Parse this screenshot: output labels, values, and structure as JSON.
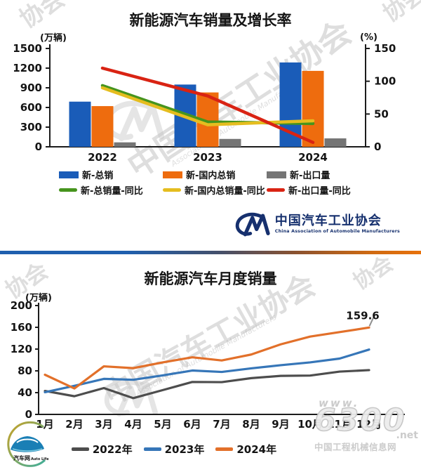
{
  "watermarks": {
    "assoc_cn": "中国汽车工业协会",
    "assoc_script": "Association of Automobile Manufacturers",
    "corner_fragment": "协会",
    "site_www": "www.",
    "site_number": "6300",
    "site_net": ".net",
    "site_name": "中国工程机械信息网"
  },
  "logo": {
    "name_cn": "中国汽车工业协会",
    "name_en": "China Association of Automobile Manufacturers"
  },
  "footer_logo": {
    "text_cn": "汽车网",
    "text_en": "Auto Life"
  },
  "chart_data": [
    {
      "type": "bar",
      "subtype": "bar+line combo, dual axis",
      "title": "新能源汽车销量及增长率",
      "left_axis_unit": "(万辆)",
      "right_axis_unit": "(%)",
      "categories": [
        "2022",
        "2023",
        "2024"
      ],
      "left_axis_ticks": [
        1500,
        1200,
        900,
        600,
        300,
        0
      ],
      "right_axis_ticks": [
        150,
        100,
        50,
        0
      ],
      "left_ylim": [
        0,
        1500
      ],
      "right_ylim": [
        0,
        150
      ],
      "grid": "off",
      "legend_position": "bottom",
      "bar_series": [
        {
          "name": "新-总销",
          "color": "#1a5cb8",
          "values": [
            688.7,
            949.5,
            1286.6
          ]
        },
        {
          "name": "新-国内总销",
          "color": "#ee6c0e",
          "values": [
            620.8,
            829.2,
            1158.2
          ]
        },
        {
          "name": "新-出口量",
          "color": "#757575",
          "values": [
            67.9,
            120.3,
            128.4
          ]
        }
      ],
      "line_series": [
        {
          "name": "新-总销量-同比",
          "color": "#46941d",
          "values": [
            93.4,
            37.9,
            35.5
          ]
        },
        {
          "name": "新-国内总销量-同比",
          "color": "#e5bd1f",
          "values": [
            90.0,
            33.6,
            39.7
          ]
        },
        {
          "name": "新-出口量-同比",
          "color": "#d92313",
          "values": [
            120.0,
            77.6,
            6.7
          ]
        }
      ]
    },
    {
      "type": "line",
      "title": "新能源汽车月度销量",
      "axis_unit": "(万辆)",
      "categories": [
        "1月",
        "2月",
        "3月",
        "4月",
        "5月",
        "6月",
        "7月",
        "8月",
        "9月",
        "10月",
        "11月",
        "12月"
      ],
      "y_ticks": [
        200,
        160,
        120,
        80,
        40,
        0
      ],
      "ylim": [
        0,
        200
      ],
      "grid": "off",
      "legend_position": "bottom",
      "series": [
        {
          "name": "2022年",
          "color": "#4d4d4d",
          "values": [
            43.1,
            33.4,
            48.4,
            29.9,
            44.7,
            59.6,
            59.3,
            66.6,
            70.8,
            71.4,
            78.6,
            81.4
          ]
        },
        {
          "name": "2023年",
          "color": "#3676b8",
          "values": [
            40.8,
            52.5,
            65.3,
            63.6,
            71.7,
            80.6,
            78.0,
            84.6,
            90.4,
            95.6,
            102.6,
            119.1
          ]
        },
        {
          "name": "2024年",
          "color": "#e2702a",
          "values": [
            72.9,
            47.7,
            88.3,
            85.0,
            95.5,
            104.9,
            99.1,
            110.0,
            128.7,
            143.0,
            151.2,
            159.6
          ]
        }
      ],
      "annotation": {
        "text": "159.6",
        "series": "2024年",
        "point": "12月"
      }
    }
  ]
}
